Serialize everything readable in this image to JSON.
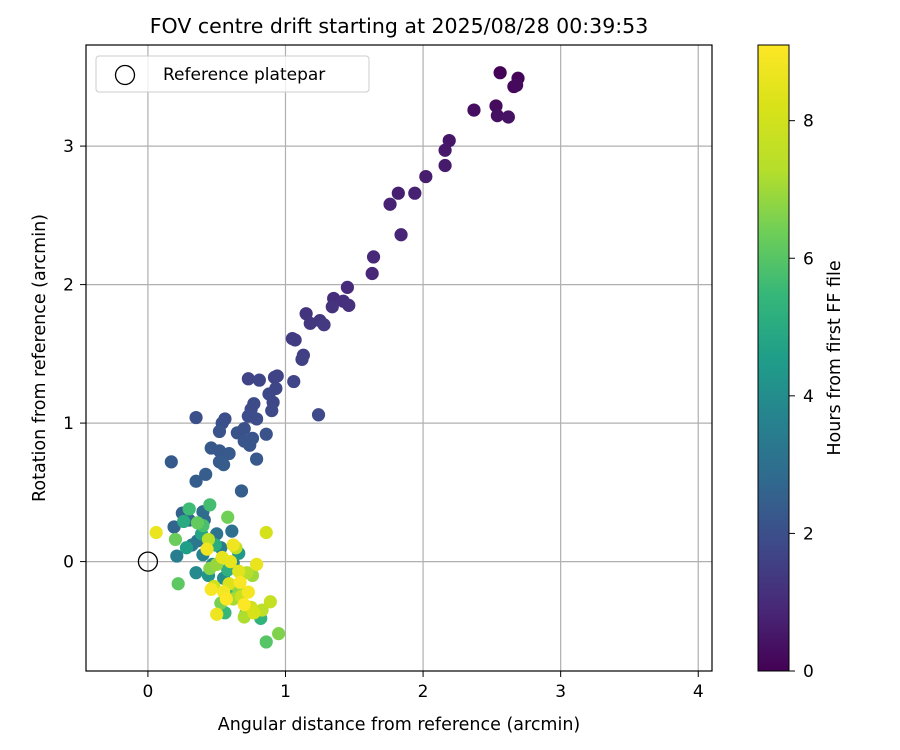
{
  "chart_data": {
    "type": "scatter",
    "title": "FOV centre drift starting at 2025/08/28 00:39:53",
    "xlabel": "Angular distance from reference (arcmin)",
    "ylabel": "Rotation from reference (arcmin)",
    "xlim": [
      -0.45,
      4.1
    ],
    "ylim": [
      -0.79,
      3.73
    ],
    "xticks": [
      0,
      1,
      2,
      3,
      4
    ],
    "yticks": [
      0,
      1,
      2,
      3
    ],
    "grid": true,
    "legend": {
      "placement": "upper-left",
      "entries": [
        "Reference platepar"
      ]
    },
    "reference_point": {
      "label": "Reference platepar",
      "x": 0,
      "y": 0,
      "marker": "open-circle",
      "color": "#000000"
    },
    "colorbar": {
      "label": "Hours from first FF file",
      "min": 0,
      "max": 9.1,
      "ticks": [
        0,
        2,
        4,
        6,
        8
      ],
      "colormap": "viridis"
    },
    "points": [
      {
        "x": 2.56,
        "y": 3.53,
        "h": 0.05
      },
      {
        "x": 2.69,
        "y": 3.49,
        "h": 0.1
      },
      {
        "x": 2.66,
        "y": 3.43,
        "h": 0.15
      },
      {
        "x": 2.68,
        "y": 3.44,
        "h": 0.2
      },
      {
        "x": 2.53,
        "y": 3.29,
        "h": 0.25
      },
      {
        "x": 2.37,
        "y": 3.26,
        "h": 0.3
      },
      {
        "x": 2.54,
        "y": 3.22,
        "h": 0.35
      },
      {
        "x": 2.62,
        "y": 3.21,
        "h": 0.4
      },
      {
        "x": 2.19,
        "y": 3.04,
        "h": 0.5
      },
      {
        "x": 2.16,
        "y": 2.97,
        "h": 0.55
      },
      {
        "x": 2.16,
        "y": 2.86,
        "h": 0.6
      },
      {
        "x": 2.02,
        "y": 2.78,
        "h": 0.65
      },
      {
        "x": 1.82,
        "y": 2.66,
        "h": 0.7
      },
      {
        "x": 1.94,
        "y": 2.66,
        "h": 0.75
      },
      {
        "x": 1.76,
        "y": 2.58,
        "h": 0.8
      },
      {
        "x": 1.84,
        "y": 2.36,
        "h": 0.85
      },
      {
        "x": 1.64,
        "y": 2.2,
        "h": 0.9
      },
      {
        "x": 1.63,
        "y": 2.08,
        "h": 0.95
      },
      {
        "x": 1.45,
        "y": 1.98,
        "h": 1.0
      },
      {
        "x": 1.35,
        "y": 1.9,
        "h": 1.05
      },
      {
        "x": 1.42,
        "y": 1.88,
        "h": 1.1
      },
      {
        "x": 1.46,
        "y": 1.85,
        "h": 1.15
      },
      {
        "x": 1.34,
        "y": 1.84,
        "h": 1.2
      },
      {
        "x": 1.15,
        "y": 1.79,
        "h": 1.25
      },
      {
        "x": 1.18,
        "y": 1.72,
        "h": 1.3
      },
      {
        "x": 1.25,
        "y": 1.74,
        "h": 1.35
      },
      {
        "x": 1.28,
        "y": 1.71,
        "h": 1.4
      },
      {
        "x": 1.05,
        "y": 1.61,
        "h": 1.45
      },
      {
        "x": 1.07,
        "y": 1.6,
        "h": 1.5
      },
      {
        "x": 1.13,
        "y": 1.49,
        "h": 1.55
      },
      {
        "x": 1.12,
        "y": 1.46,
        "h": 1.6
      },
      {
        "x": 0.92,
        "y": 1.33,
        "h": 1.62
      },
      {
        "x": 0.94,
        "y": 1.34,
        "h": 1.65
      },
      {
        "x": 0.73,
        "y": 1.32,
        "h": 1.68
      },
      {
        "x": 0.81,
        "y": 1.31,
        "h": 1.7
      },
      {
        "x": 1.06,
        "y": 1.3,
        "h": 1.72
      },
      {
        "x": 0.93,
        "y": 1.25,
        "h": 1.75
      },
      {
        "x": 0.88,
        "y": 1.21,
        "h": 1.78
      },
      {
        "x": 0.91,
        "y": 1.15,
        "h": 1.8
      },
      {
        "x": 0.9,
        "y": 1.09,
        "h": 1.82
      },
      {
        "x": 1.24,
        "y": 1.06,
        "h": 1.85
      },
      {
        "x": 0.77,
        "y": 1.14,
        "h": 1.88
      },
      {
        "x": 0.75,
        "y": 1.1,
        "h": 1.9
      },
      {
        "x": 0.73,
        "y": 1.05,
        "h": 1.92
      },
      {
        "x": 0.79,
        "y": 1.03,
        "h": 1.95
      },
      {
        "x": 0.56,
        "y": 1.03,
        "h": 1.98
      },
      {
        "x": 0.35,
        "y": 1.04,
        "h": 2.0
      },
      {
        "x": 0.54,
        "y": 1.0,
        "h": 2.02
      },
      {
        "x": 0.7,
        "y": 0.96,
        "h": 2.05
      },
      {
        "x": 0.65,
        "y": 0.93,
        "h": 2.08
      },
      {
        "x": 0.52,
        "y": 0.94,
        "h": 2.1
      },
      {
        "x": 0.86,
        "y": 0.92,
        "h": 2.12
      },
      {
        "x": 0.76,
        "y": 0.89,
        "h": 2.15
      },
      {
        "x": 0.7,
        "y": 0.87,
        "h": 2.18
      },
      {
        "x": 0.74,
        "y": 0.84,
        "h": 2.2
      },
      {
        "x": 0.46,
        "y": 0.82,
        "h": 2.22
      },
      {
        "x": 0.52,
        "y": 0.8,
        "h": 2.25
      },
      {
        "x": 0.59,
        "y": 0.78,
        "h": 2.28
      },
      {
        "x": 0.79,
        "y": 0.74,
        "h": 2.3
      },
      {
        "x": 0.17,
        "y": 0.72,
        "h": 2.32
      },
      {
        "x": 0.52,
        "y": 0.72,
        "h": 2.35
      },
      {
        "x": 0.55,
        "y": 0.7,
        "h": 2.38
      },
      {
        "x": 0.42,
        "y": 0.63,
        "h": 2.4
      },
      {
        "x": 0.35,
        "y": 0.58,
        "h": 2.42
      },
      {
        "x": 0.68,
        "y": 0.51,
        "h": 2.45
      },
      {
        "x": 0.25,
        "y": 0.35,
        "h": 2.5
      },
      {
        "x": 0.19,
        "y": 0.25,
        "h": 2.6
      },
      {
        "x": 0.3,
        "y": 0.3,
        "h": 2.7
      },
      {
        "x": 0.41,
        "y": 0.3,
        "h": 2.8
      },
      {
        "x": 0.4,
        "y": 0.36,
        "h": 2.9
      },
      {
        "x": 0.61,
        "y": 0.22,
        "h": 3.0
      },
      {
        "x": 0.5,
        "y": 0.2,
        "h": 3.1
      },
      {
        "x": 0.36,
        "y": 0.15,
        "h": 3.2
      },
      {
        "x": 0.32,
        "y": 0.12,
        "h": 3.3
      },
      {
        "x": 0.53,
        "y": 0.1,
        "h": 3.4
      },
      {
        "x": 0.21,
        "y": 0.04,
        "h": 3.5
      },
      {
        "x": 0.4,
        "y": 0.05,
        "h": 3.6
      },
      {
        "x": 0.47,
        "y": -0.02,
        "h": 3.7
      },
      {
        "x": 0.62,
        "y": -0.01,
        "h": 3.8
      },
      {
        "x": 0.35,
        "y": -0.08,
        "h": 3.9
      },
      {
        "x": 0.55,
        "y": -0.12,
        "h": 4.0
      },
      {
        "x": 0.44,
        "y": -0.1,
        "h": 4.2
      },
      {
        "x": 0.66,
        "y": 0.06,
        "h": 4.4
      },
      {
        "x": 0.28,
        "y": 0.1,
        "h": 4.6
      },
      {
        "x": 0.39,
        "y": 0.2,
        "h": 4.8
      },
      {
        "x": 0.26,
        "y": 0.29,
        "h": 5.0
      },
      {
        "x": 0.49,
        "y": 0.12,
        "h": 5.1
      },
      {
        "x": 0.58,
        "y": -0.06,
        "h": 5.2
      },
      {
        "x": 0.82,
        "y": -0.41,
        "h": 5.3
      },
      {
        "x": 0.6,
        "y": -0.24,
        "h": 5.4
      },
      {
        "x": 0.56,
        "y": -0.37,
        "h": 5.5
      },
      {
        "x": 0.3,
        "y": 0.38,
        "h": 5.6
      },
      {
        "x": 0.45,
        "y": 0.41,
        "h": 5.7
      },
      {
        "x": 0.4,
        "y": 0.26,
        "h": 5.8
      },
      {
        "x": 0.71,
        "y": -0.38,
        "h": 5.9
      },
      {
        "x": 0.86,
        "y": -0.58,
        "h": 6.0
      },
      {
        "x": 0.22,
        "y": -0.16,
        "h": 6.1
      },
      {
        "x": 0.36,
        "y": 0.28,
        "h": 6.2
      },
      {
        "x": 0.2,
        "y": 0.16,
        "h": 6.3
      },
      {
        "x": 0.58,
        "y": 0.32,
        "h": 6.4
      },
      {
        "x": 0.53,
        "y": -0.3,
        "h": 6.5
      },
      {
        "x": 0.95,
        "y": -0.52,
        "h": 6.6
      },
      {
        "x": 0.45,
        "y": -0.05,
        "h": 6.7
      },
      {
        "x": 0.66,
        "y": -0.2,
        "h": 6.8
      },
      {
        "x": 0.5,
        "y": -0.02,
        "h": 6.9
      },
      {
        "x": 0.76,
        "y": -0.1,
        "h": 7.0
      },
      {
        "x": 0.62,
        "y": -0.27,
        "h": 7.1
      },
      {
        "x": 0.7,
        "y": -0.4,
        "h": 7.2
      },
      {
        "x": 0.72,
        "y": -0.08,
        "h": 7.3
      },
      {
        "x": 0.44,
        "y": 0.16,
        "h": 7.4
      },
      {
        "x": 0.83,
        "y": -0.35,
        "h": 7.5
      },
      {
        "x": 0.64,
        "y": 0.1,
        "h": 7.6
      },
      {
        "x": 0.89,
        "y": -0.29,
        "h": 7.7
      },
      {
        "x": 0.68,
        "y": -0.25,
        "h": 7.8
      },
      {
        "x": 0.48,
        "y": -0.18,
        "h": 7.9
      },
      {
        "x": 0.75,
        "y": -0.33,
        "h": 8.0
      },
      {
        "x": 0.86,
        "y": 0.21,
        "h": 8.1
      },
      {
        "x": 0.77,
        "y": -0.37,
        "h": 8.2
      },
      {
        "x": 0.59,
        "y": -0.16,
        "h": 8.3
      },
      {
        "x": 0.66,
        "y": -0.07,
        "h": 8.4
      },
      {
        "x": 0.54,
        "y": 0.03,
        "h": 8.5
      },
      {
        "x": 0.6,
        "y": 0.0,
        "h": 8.55
      },
      {
        "x": 0.79,
        "y": -0.02,
        "h": 8.6
      },
      {
        "x": 0.06,
        "y": 0.21,
        "h": 8.65
      },
      {
        "x": 0.5,
        "y": -0.38,
        "h": 8.7
      },
      {
        "x": 0.62,
        "y": 0.12,
        "h": 8.75
      },
      {
        "x": 0.43,
        "y": 0.09,
        "h": 8.8
      },
      {
        "x": 0.55,
        "y": -0.22,
        "h": 8.85
      },
      {
        "x": 0.73,
        "y": -0.22,
        "h": 8.9
      },
      {
        "x": 0.46,
        "y": -0.2,
        "h": 8.95
      },
      {
        "x": 0.67,
        "y": -0.15,
        "h": 9.0
      },
      {
        "x": 0.7,
        "y": -0.31,
        "h": 9.05
      },
      {
        "x": 0.57,
        "y": -0.27,
        "h": 9.1
      }
    ]
  }
}
